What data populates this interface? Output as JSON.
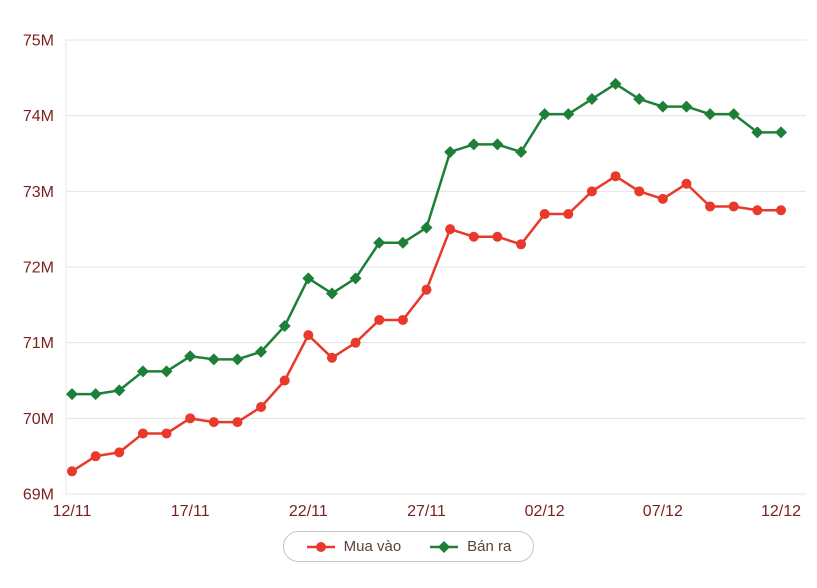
{
  "chart_data": {
    "type": "line",
    "x": [
      "12/11",
      "13/11",
      "14/11",
      "15/11",
      "16/11",
      "17/11",
      "18/11",
      "19/11",
      "20/11",
      "21/11",
      "22/11",
      "23/11",
      "24/11",
      "25/11",
      "26/11",
      "27/11",
      "28/11",
      "29/11",
      "30/11",
      "01/12",
      "02/12",
      "03/12",
      "04/12",
      "05/12",
      "06/12",
      "07/12",
      "08/12",
      "09/12",
      "10/12",
      "11/12",
      "12/12"
    ],
    "x_tick_labels": [
      "12/11",
      "17/11",
      "22/11",
      "27/11",
      "02/12",
      "07/12",
      "12/12"
    ],
    "y_ticks": [
      "69M",
      "70M",
      "71M",
      "72M",
      "73M",
      "74M",
      "75M"
    ],
    "ylim": [
      69,
      75
    ],
    "unit": "M",
    "grid": true,
    "legend_position": "bottom",
    "colors": {
      "axis_text": "#7b1f1f",
      "grid": "#e4e4e4",
      "legend_border": "#c6c6c6",
      "legend_text": "#5d4037"
    },
    "series": [
      {
        "name": "Mua vào",
        "color": "#e8392b",
        "marker": "circle",
        "values": [
          69.3,
          69.5,
          69.55,
          69.8,
          69.8,
          70.0,
          69.95,
          69.95,
          70.15,
          70.5,
          71.1,
          70.8,
          71.0,
          71.3,
          71.3,
          71.7,
          72.5,
          72.4,
          72.4,
          72.3,
          72.7,
          72.7,
          73.0,
          73.2,
          73.0,
          72.9,
          73.1,
          72.8,
          72.8,
          72.75,
          72.75
        ]
      },
      {
        "name": "Bán ra",
        "color": "#1e8038",
        "marker": "diamond",
        "values": [
          70.32,
          70.32,
          70.37,
          70.62,
          70.62,
          70.82,
          70.78,
          70.78,
          70.88,
          71.22,
          71.85,
          71.65,
          71.85,
          72.32,
          72.32,
          72.52,
          73.52,
          73.62,
          73.62,
          73.52,
          74.02,
          74.02,
          74.22,
          74.42,
          74.22,
          74.12,
          74.12,
          74.02,
          74.02,
          73.78,
          73.78
        ]
      }
    ]
  }
}
